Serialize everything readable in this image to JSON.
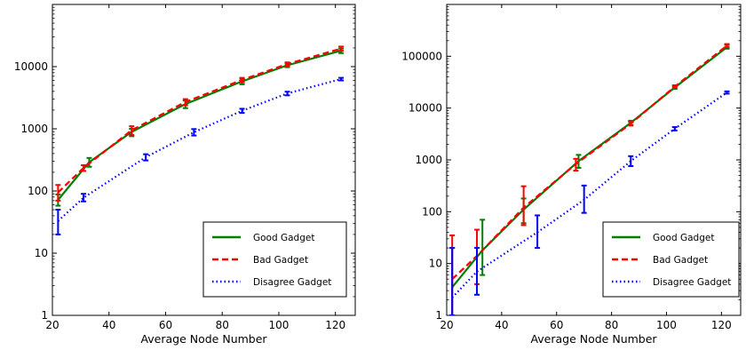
{
  "chart_data": [
    {
      "type": "line",
      "xlabel": "Average Node Number",
      "ylabel": "",
      "xlim": [
        20,
        127
      ],
      "ylim": [
        1,
        100000
      ],
      "y_scale": "log",
      "x_ticks": [
        20,
        40,
        60,
        80,
        100,
        120
      ],
      "y_ticks": [
        1,
        10,
        100,
        1000,
        10000
      ],
      "y_tick_labels": [
        "1",
        "10",
        "100",
        "1000",
        "10000"
      ],
      "legend_position": "lower-right",
      "series": [
        {
          "name": "Good Gadget",
          "color": "#007f00",
          "style": "solid",
          "points": [
            {
              "x": 22,
              "y": 72,
              "lo": 58,
              "hi": 88
            },
            {
              "x": 33,
              "y": 290,
              "lo": 245,
              "hi": 340
            },
            {
              "x": 48,
              "y": 890,
              "lo": 760,
              "hi": 1000
            },
            {
              "x": 67,
              "y": 2500,
              "lo": 2150,
              "hi": 2850
            },
            {
              "x": 87,
              "y": 5800,
              "lo": 5200,
              "hi": 6400
            },
            {
              "x": 103,
              "y": 10500,
              "lo": 9800,
              "hi": 11200
            },
            {
              "x": 122,
              "y": 18000,
              "lo": 16500,
              "hi": 19500
            }
          ]
        },
        {
          "name": "Bad Gadget",
          "color": "#ff0000",
          "style": "dashed",
          "points": [
            {
              "x": 22,
              "y": 95,
              "lo": 70,
              "hi": 125
            },
            {
              "x": 31,
              "y": 235,
              "lo": 210,
              "hi": 260
            },
            {
              "x": 48,
              "y": 950,
              "lo": 800,
              "hi": 1100
            },
            {
              "x": 67,
              "y": 2700,
              "lo": 2400,
              "hi": 3000
            },
            {
              "x": 87,
              "y": 6100,
              "lo": 5600,
              "hi": 6600
            },
            {
              "x": 103,
              "y": 11000,
              "lo": 10300,
              "hi": 11700
            },
            {
              "x": 122,
              "y": 19500,
              "lo": 18000,
              "hi": 21000
            }
          ]
        },
        {
          "name": "Disagree Gadget",
          "color": "#0000ff",
          "style": "dotted",
          "points": [
            {
              "x": 22,
              "y": 33,
              "lo": 20,
              "hi": 50
            },
            {
              "x": 31,
              "y": 78,
              "lo": 68,
              "hi": 90
            },
            {
              "x": 53,
              "y": 350,
              "lo": 310,
              "hi": 390
            },
            {
              "x": 70,
              "y": 880,
              "lo": 780,
              "hi": 990
            },
            {
              "x": 87,
              "y": 1950,
              "lo": 1800,
              "hi": 2100
            },
            {
              "x": 103,
              "y": 3700,
              "lo": 3450,
              "hi": 3950
            },
            {
              "x": 122,
              "y": 6300,
              "lo": 6000,
              "hi": 6600
            }
          ]
        }
      ]
    },
    {
      "type": "line",
      "xlabel": "Average Node Number",
      "ylabel": "",
      "xlim": [
        20,
        127
      ],
      "ylim": [
        1,
        1000000
      ],
      "y_scale": "log",
      "x_ticks": [
        20,
        40,
        60,
        80,
        100,
        120
      ],
      "y_ticks": [
        1,
        10,
        100,
        1000,
        10000,
        100000
      ],
      "y_tick_labels": [
        "1",
        "10",
        "100",
        "1000",
        "10000",
        "100000"
      ],
      "legend_position": "lower-right",
      "series": [
        {
          "name": "Good Gadget",
          "color": "#007f00",
          "style": "solid",
          "points": [
            {
              "x": 22,
              "y": 3.5,
              "lo": 1,
              "hi": 20
            },
            {
              "x": 33,
              "y": 18,
              "lo": 6,
              "hi": 70
            },
            {
              "x": 48,
              "y": 110,
              "lo": 60,
              "hi": 180
            },
            {
              "x": 68,
              "y": 950,
              "lo": 700,
              "hi": 1250
            },
            {
              "x": 87,
              "y": 5200,
              "lo": 4700,
              "hi": 5700
            },
            {
              "x": 103,
              "y": 25000,
              "lo": 23500,
              "hi": 26500
            },
            {
              "x": 122,
              "y": 150000,
              "lo": 140000,
              "hi": 165000
            }
          ]
        },
        {
          "name": "Bad Gadget",
          "color": "#ff0000",
          "style": "dashed",
          "points": [
            {
              "x": 22,
              "y": 5,
              "lo": 1,
              "hi": 35
            },
            {
              "x": 31,
              "y": 14,
              "lo": 4,
              "hi": 45
            },
            {
              "x": 48,
              "y": 120,
              "lo": 55,
              "hi": 310
            },
            {
              "x": 67,
              "y": 830,
              "lo": 620,
              "hi": 1050
            },
            {
              "x": 87,
              "y": 5000,
              "lo": 4600,
              "hi": 5400
            },
            {
              "x": 103,
              "y": 26000,
              "lo": 24500,
              "hi": 27500
            },
            {
              "x": 122,
              "y": 160000,
              "lo": 150000,
              "hi": 172000
            }
          ]
        },
        {
          "name": "Disagree Gadget",
          "color": "#0000ff",
          "style": "dotted",
          "points": [
            {
              "x": 22,
              "y": 2.2,
              "lo": 1,
              "hi": 20
            },
            {
              "x": 31,
              "y": 7,
              "lo": 2.5,
              "hi": 20
            },
            {
              "x": 53,
              "y": 40,
              "lo": 20,
              "hi": 85
            },
            {
              "x": 70,
              "y": 170,
              "lo": 95,
              "hi": 320
            },
            {
              "x": 87,
              "y": 950,
              "lo": 760,
              "hi": 1180
            },
            {
              "x": 103,
              "y": 4000,
              "lo": 3700,
              "hi": 4300
            },
            {
              "x": 122,
              "y": 20000,
              "lo": 19000,
              "hi": 21000
            }
          ]
        }
      ]
    }
  ]
}
